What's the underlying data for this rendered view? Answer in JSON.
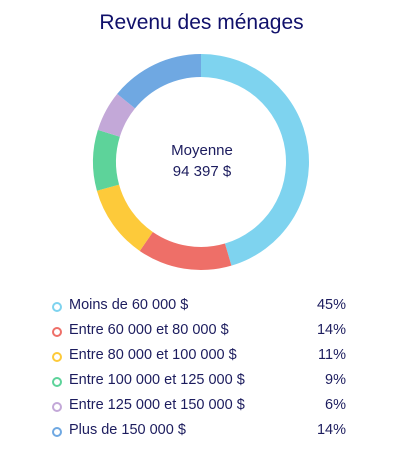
{
  "chart_data": {
    "type": "pie",
    "title": "Revenu des ménages",
    "center": {
      "line1": "Moyenne",
      "line2": "94 397 $"
    },
    "categories": [
      "Moins de 60 000 $",
      "Entre 60 000 et 80 000 $",
      "Entre 80 000 et 100 000 $",
      "Entre 100 000 et 125 000 $",
      "Entre 125 000 et 150 000 $",
      "Plus de 150 000 $"
    ],
    "values": [
      45,
      14,
      11,
      9,
      6,
      14
    ],
    "labels": [
      "45%",
      "14%",
      "11%",
      "9%",
      "6%",
      "14%"
    ],
    "colors": [
      "#7ed3ef",
      "#ee6f68",
      "#fdca3a",
      "#5dd39a",
      "#c3a8d8",
      "#6fa8e2"
    ],
    "legend_position": "bottom"
  }
}
